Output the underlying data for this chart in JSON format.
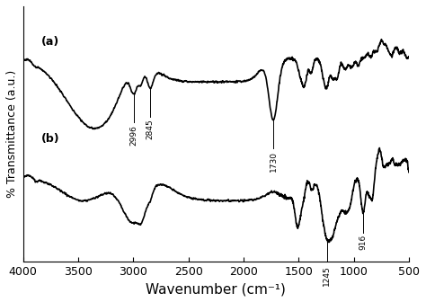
{
  "xlabel": "Wavenumber (cm⁻¹)",
  "ylabel": "% Transmittance (a.u.)",
  "xlim": [
    4000,
    500
  ],
  "label_a": "(a)",
  "label_b": "(b)",
  "xticks": [
    4000,
    3500,
    3000,
    2500,
    2000,
    1500,
    1000,
    500
  ],
  "line_color": "#000000",
  "linewidth": 1.2
}
